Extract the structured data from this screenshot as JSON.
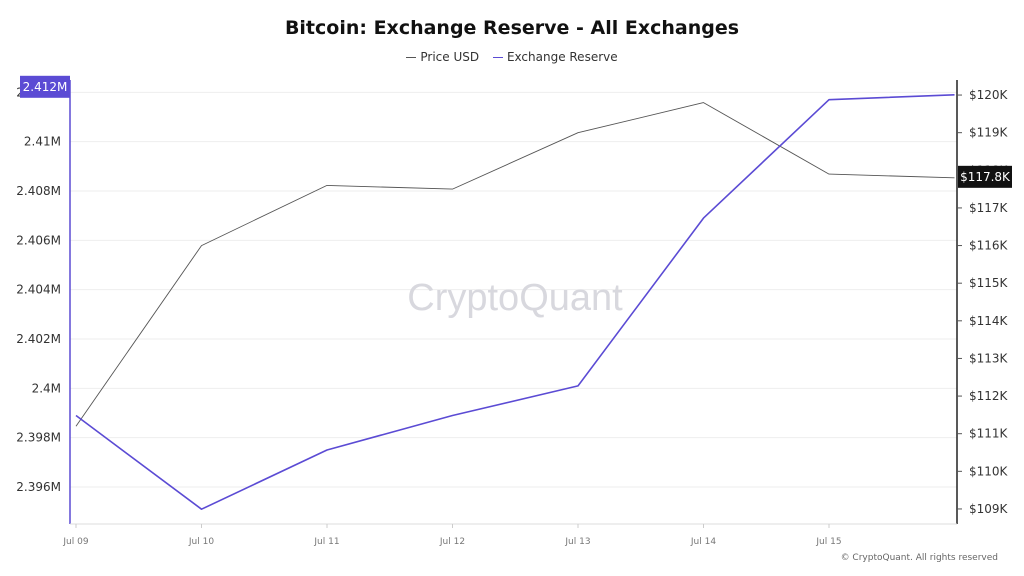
{
  "chart_data": {
    "type": "line",
    "title": "Bitcoin: Exchange Reserve - All Exchanges",
    "categories": [
      "Jul 09",
      "Jul 10",
      "Jul 11",
      "Jul 12",
      "Jul 13",
      "Jul 14",
      "Jul 15",
      ""
    ],
    "series": [
      {
        "name": "Price USD",
        "axis": "right",
        "color": "#555555",
        "values": [
          111200,
          116000,
          117600,
          117500,
          119000,
          119800,
          117900,
          117800
        ]
      },
      {
        "name": "Exchange Reserve",
        "axis": "left",
        "color": "#5b4bd4",
        "values": [
          2.3989,
          2.3951,
          2.3975,
          2.3989,
          2.4001,
          2.4069,
          2.4117,
          2.4119
        ]
      }
    ],
    "y_left": {
      "ticks": [
        2.396,
        2.398,
        2.4,
        2.402,
        2.404,
        2.406,
        2.408,
        2.41,
        2.412
      ],
      "tick_labels": [
        "2.396M",
        "2.398M",
        "2.4M",
        "2.402M",
        "2.404M",
        "2.406M",
        "2.408M",
        "2.41M",
        "2.412M"
      ],
      "range": [
        2.3945,
        2.4125
      ]
    },
    "y_right": {
      "ticks": [
        109000,
        110000,
        111000,
        112000,
        113000,
        114000,
        115000,
        116000,
        117000,
        118000,
        119000,
        120000
      ],
      "tick_labels": [
        "$109K",
        "$110K",
        "$111K",
        "$112K",
        "$113K",
        "$114K",
        "$115K",
        "$116K",
        "$117K",
        "$118K",
        "$119K",
        "$120K"
      ],
      "range": [
        108600,
        120400
      ]
    },
    "x_tick_labels": [
      "Jul 09",
      "Jul 10",
      "Jul 11",
      "Jul 12",
      "Jul 13",
      "Jul 14",
      "Jul 15"
    ],
    "current_labels": {
      "reserve": "2.412M",
      "price": "$117.8K"
    },
    "grid": true,
    "legend_position": "top-center"
  },
  "watermark": "CryptoQuant",
  "copyright": "© CryptoQuant. All rights reserved",
  "colors": {
    "reserve": "#5b4bd4",
    "price": "#555555",
    "grid": "#eeeeee",
    "axis_text": "#333333",
    "price_badge_bg": "#111111",
    "reserve_badge_bg": "#5b4bd4"
  }
}
